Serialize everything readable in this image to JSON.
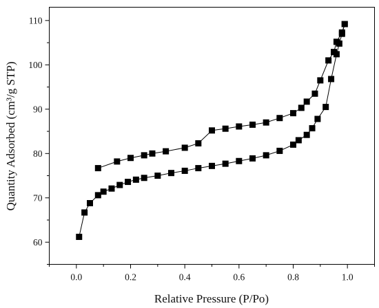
{
  "chart_data": {
    "type": "scatter",
    "title": "",
    "xlabel": "Relative Pressure (P/Po)",
    "ylabel": "Quantity Adsorbed (cm³/g STP)",
    "xlim": [
      -0.1,
      1.1
    ],
    "ylim": [
      55,
      113
    ],
    "xticks": [
      0.0,
      0.2,
      0.4,
      0.6,
      0.8,
      1.0
    ],
    "xtick_labels": [
      "0.0",
      "0.2",
      "0.4",
      "0.6",
      "0.8",
      "1.0"
    ],
    "yticks": [
      60,
      70,
      80,
      90,
      100,
      110
    ],
    "ytick_labels": [
      "60",
      "70",
      "80",
      "90",
      "100",
      "110"
    ],
    "grid": false,
    "marker": "square",
    "line_connected": true,
    "color": "#000000",
    "series": [
      {
        "x": [
          0.01,
          0.03,
          0.05,
          0.08,
          0.1,
          0.13,
          0.16,
          0.19,
          0.22,
          0.25,
          0.3,
          0.35,
          0.4,
          0.45,
          0.5,
          0.55,
          0.6,
          0.65,
          0.7,
          0.75,
          0.8,
          0.82,
          0.85,
          0.87,
          0.89,
          0.92,
          0.94,
          0.96,
          0.97,
          0.98,
          0.99
        ],
        "y": [
          61.2,
          66.7,
          68.8,
          70.6,
          71.4,
          72.1,
          72.9,
          73.6,
          74.1,
          74.5,
          75.0,
          75.6,
          76.1,
          76.7,
          77.2,
          77.7,
          78.3,
          78.9,
          79.6,
          80.6,
          82.0,
          83.0,
          84.2,
          85.7,
          87.8,
          90.5,
          96.8,
          102.4,
          104.8,
          107.0,
          109.2
        ]
      },
      {
        "x": [
          0.99,
          0.98,
          0.96,
          0.95,
          0.93,
          0.9,
          0.88,
          0.85,
          0.83,
          0.8,
          0.75,
          0.7,
          0.65,
          0.6,
          0.55,
          0.5,
          0.45,
          0.4,
          0.33,
          0.28,
          0.25,
          0.2,
          0.15,
          0.08
        ],
        "y": [
          109.2,
          107.3,
          105.2,
          102.9,
          101.0,
          96.5,
          93.5,
          91.7,
          90.3,
          89.1,
          88.0,
          87.0,
          86.5,
          86.1,
          85.6,
          85.2,
          82.3,
          81.3,
          80.5,
          80.0,
          79.6,
          79.0,
          78.2,
          76.7
        ]
      }
    ]
  }
}
